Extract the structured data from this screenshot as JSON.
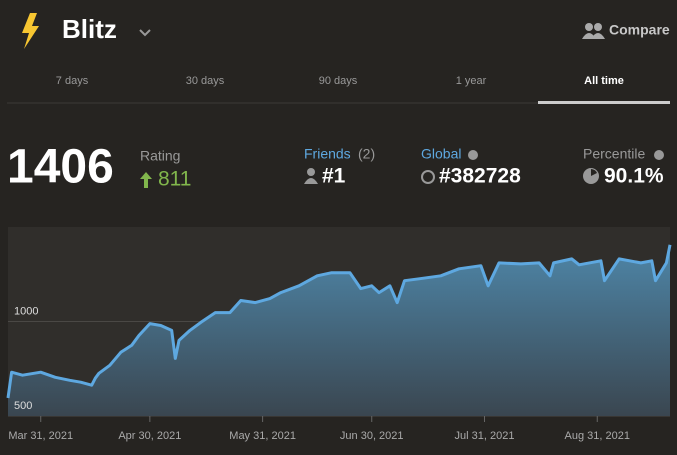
{
  "header": {
    "title": "Blitz",
    "compare": "Compare"
  },
  "tabs": {
    "items": [
      "7 days",
      "30 days",
      "90 days",
      "1 year",
      "All time"
    ],
    "active": 4
  },
  "stats": {
    "rating": {
      "value": "1406",
      "label": "Rating",
      "change": "811"
    },
    "friends": {
      "label": "Friends",
      "count": "(2)",
      "rank": "#1"
    },
    "global": {
      "label": "Global",
      "rank": "#382728"
    },
    "percentile": {
      "label": "Percentile",
      "value": "90.1%"
    }
  },
  "chart_data": {
    "type": "area",
    "x": [
      "2021-03-22",
      "2021-03-23",
      "2021-03-26",
      "2021-03-31",
      "2021-04-04",
      "2021-04-08",
      "2021-04-11",
      "2021-04-14",
      "2021-04-15",
      "2021-04-16",
      "2021-04-19",
      "2021-04-22",
      "2021-04-25",
      "2021-04-27",
      "2021-04-30",
      "2021-05-03",
      "2021-05-06",
      "2021-05-07",
      "2021-05-08",
      "2021-05-11",
      "2021-05-14",
      "2021-05-18",
      "2021-05-22",
      "2021-05-25",
      "2021-05-29",
      "2021-06-02",
      "2021-06-05",
      "2021-06-10",
      "2021-06-15",
      "2021-06-19",
      "2021-06-24",
      "2021-06-27",
      "2021-06-30",
      "2021-07-02",
      "2021-07-05",
      "2021-07-07",
      "2021-07-09",
      "2021-07-13",
      "2021-07-19",
      "2021-07-24",
      "2021-07-30",
      "2021-08-01",
      "2021-08-04",
      "2021-08-10",
      "2021-08-15",
      "2021-08-18",
      "2021-08-19",
      "2021-08-24",
      "2021-08-26",
      "2021-09-01",
      "2021-09-02",
      "2021-09-06",
      "2021-09-12",
      "2021-09-15",
      "2021-09-16",
      "2021-09-19",
      "2021-09-20"
    ],
    "values": [
      595,
      732,
      716,
      732,
      705,
      689,
      679,
      663,
      700,
      726,
      768,
      837,
      874,
      926,
      989,
      979,
      953,
      805,
      900,
      953,
      995,
      1047,
      1047,
      1111,
      1100,
      1121,
      1153,
      1189,
      1242,
      1258,
      1258,
      1174,
      1189,
      1153,
      1189,
      1100,
      1216,
      1226,
      1242,
      1279,
      1295,
      1189,
      1310,
      1305,
      1310,
      1242,
      1310,
      1331,
      1300,
      1321,
      1216,
      1331,
      1310,
      1321,
      1216,
      1310,
      1406
    ],
    "line_color": "#5ea8e0",
    "xlim": [
      "2021-03-22",
      "2021-09-20"
    ],
    "xticks": [
      {
        "value": "2021-03-31",
        "label": "Mar 31, 2021"
      },
      {
        "value": "2021-04-30",
        "label": "Apr 30, 2021"
      },
      {
        "value": "2021-05-31",
        "label": "May 31, 2021"
      },
      {
        "value": "2021-06-30",
        "label": "Jun 30, 2021"
      },
      {
        "value": "2021-07-31",
        "label": "Jul 31, 2021"
      },
      {
        "value": "2021-08-31",
        "label": "Aug 31, 2021"
      }
    ],
    "ylim": [
      500,
      1500
    ],
    "yticks": [
      500,
      1000
    ],
    "grid": true
  }
}
